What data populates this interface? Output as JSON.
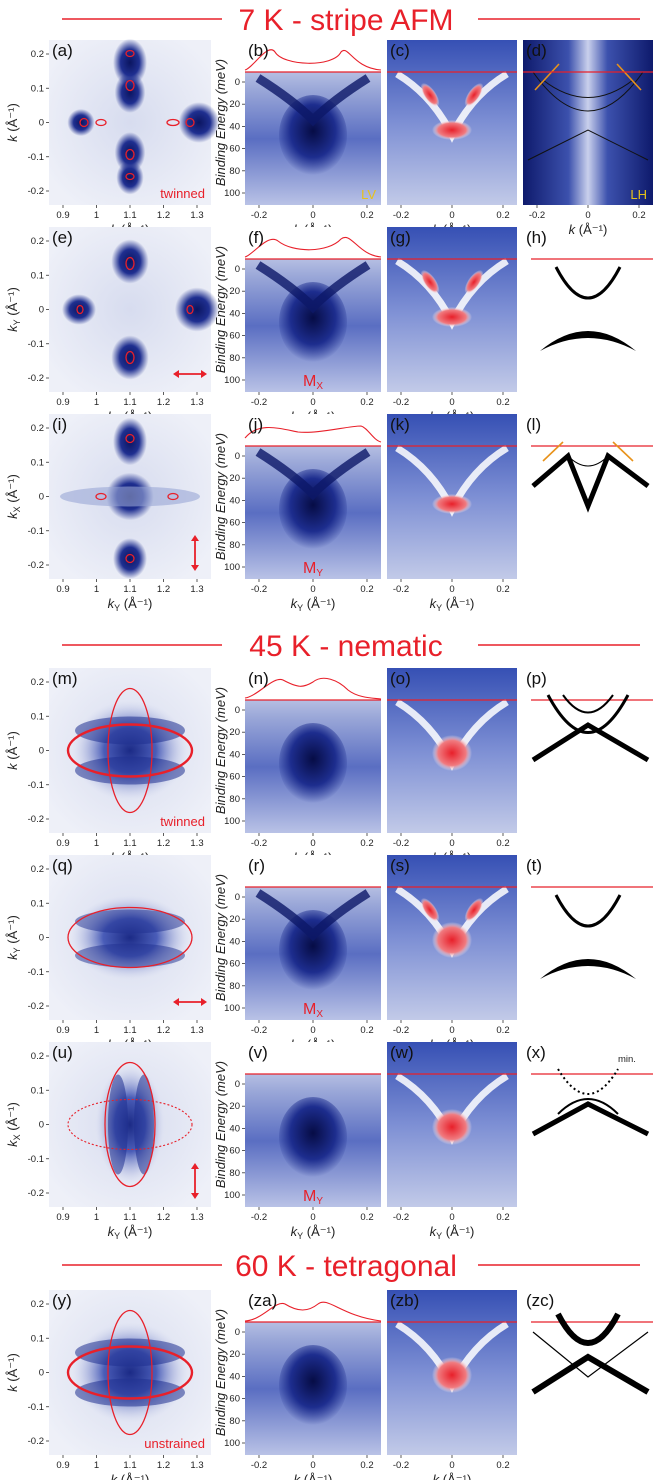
{
  "headers": [
    "7 K - stripe AFM",
    "45 K - nematic",
    "60 K - tetragonal"
  ],
  "panel_labels": [
    "(a)",
    "(b)",
    "(c)",
    "(d)",
    "(e)",
    "(f)",
    "(g)",
    "(h)",
    "(i)",
    "(j)",
    "(k)",
    "(l)",
    "(m)",
    "(n)",
    "(o)",
    "(p)",
    "(q)",
    "(r)",
    "(s)",
    "(t)",
    "(u)",
    "(v)",
    "(w)",
    "(x)",
    "(y)",
    "(za)",
    "(zb)",
    "(zc)"
  ],
  "fs_ticks_x": [
    "0.9",
    "1",
    "1.1",
    "1.2",
    "1.3"
  ],
  "fs_ticks_y": [
    "0.2",
    "0.1",
    "0",
    "-0.1",
    "-0.2"
  ],
  "cut_ticks_x": [
    "-0.2",
    "0",
    "0.2"
  ],
  "energy_ticks": [
    "0",
    "20",
    "40",
    "60",
    "80",
    "100"
  ],
  "ylabel_energy": "Binding Energy (meV)",
  "notes": {
    "twinned": "twinned",
    "unstrained": "unstrained",
    "LV": "LV",
    "LH": "LH",
    "min": "min.",
    "Mx": "M",
    "My": "M",
    "sub_x": "X",
    "sub_y": "Y"
  },
  "axis_labels": {
    "k": "k (Å⁻¹)",
    "kx": "k",
    "ky": "k",
    "unit": " (Å⁻¹)"
  },
  "colors": {
    "red": "#e8202a",
    "blue_dark": "#1a2a8a",
    "blue_mid": "#5b6fc0",
    "orange": "#e8921a"
  }
}
